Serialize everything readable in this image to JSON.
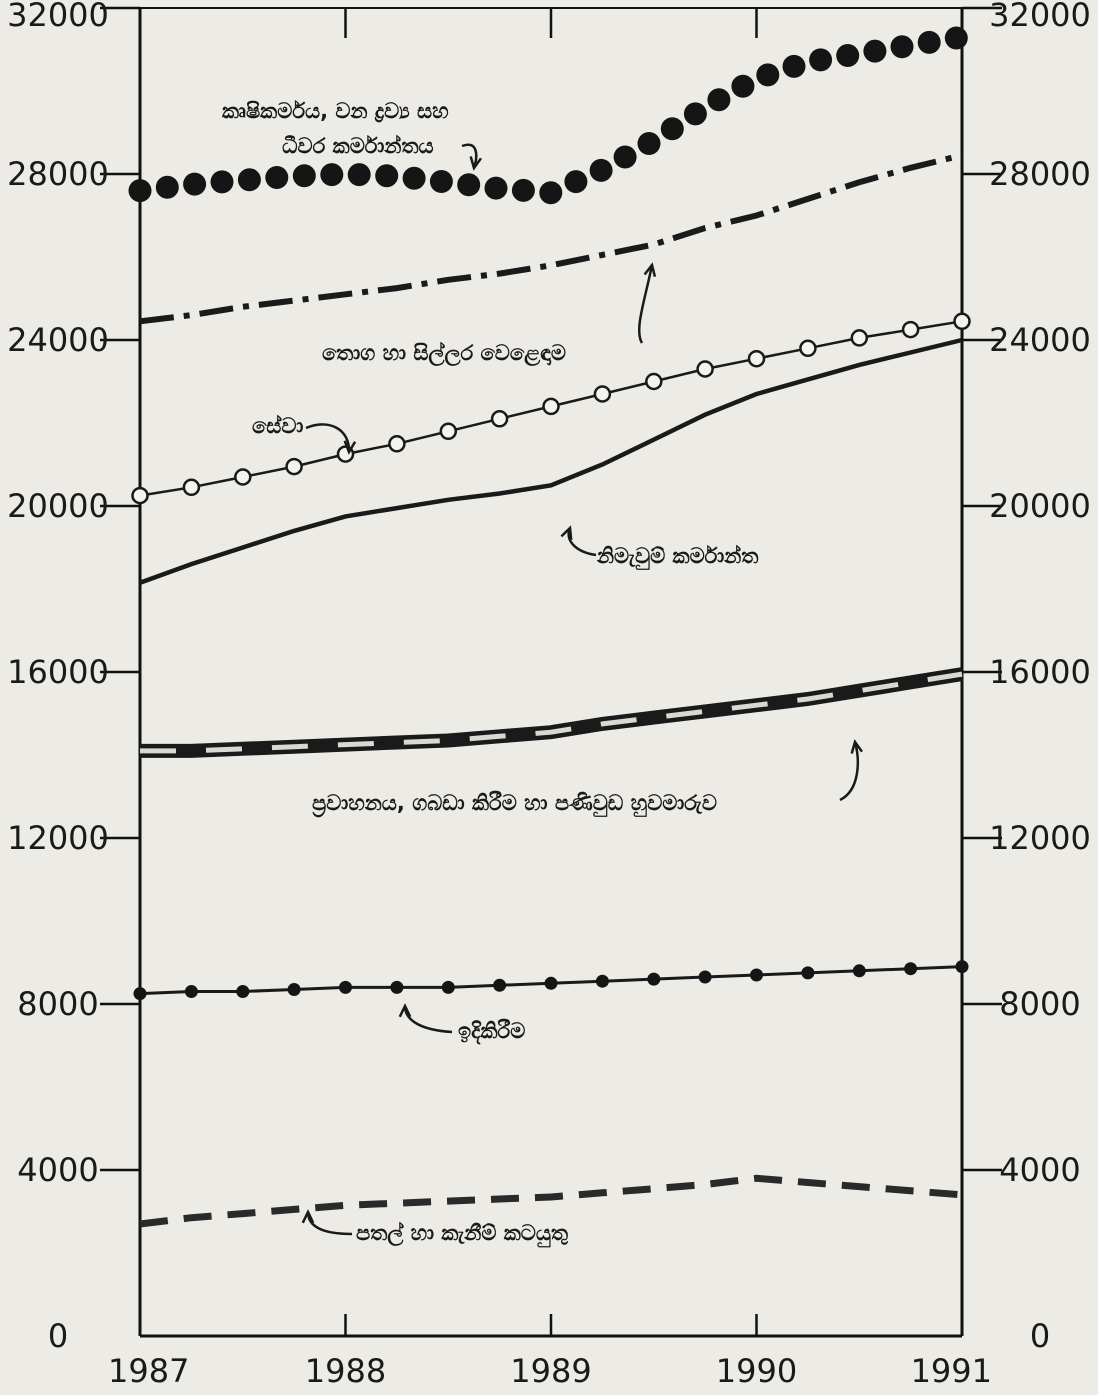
{
  "chart_data": {
    "type": "line",
    "x": [
      1987,
      1987.25,
      1987.5,
      1987.75,
      1988,
      1988.25,
      1988.5,
      1988.75,
      1989,
      1989.25,
      1989.5,
      1989.75,
      1990,
      1990.25,
      1990.5,
      1990.75,
      1991
    ],
    "x_ticks": [
      1987,
      1988,
      1989,
      1990,
      1991
    ],
    "x_tick_labels": [
      "1987",
      "1988",
      "1989",
      "1990",
      "1991"
    ],
    "y_ticks": [
      0,
      4000,
      8000,
      12000,
      16000,
      20000,
      24000,
      28000,
      32000
    ],
    "y_tick_labels": [
      "0",
      "4000",
      "8000",
      "12000",
      "16000",
      "20000",
      "24000",
      "28000",
      "32000"
    ],
    "xlim": [
      1987,
      1991
    ],
    "ylim": [
      0,
      32000
    ],
    "grid": false,
    "series": [
      {
        "name": "කෘෂිකර්මය, වන ද්‍රව්‍ය සහ ධීවර කර්මාන්තය",
        "name_line1": "කෘෂිකර්මය, වන ද්‍රව්‍ය සහ",
        "name_line2": "ධීවර කර්මාන්තය",
        "style": "big-dots",
        "values": [
          27600,
          27750,
          27850,
          27950,
          28000,
          27950,
          27800,
          27650,
          27550,
          28100,
          28800,
          29600,
          30300,
          30700,
          30900,
          31100,
          31300
        ]
      },
      {
        "name": "තොග හා සිල්ලර වෙළෙඳාම",
        "style": "dash-dot",
        "values": [
          24450,
          24600,
          24800,
          24950,
          25100,
          25250,
          25450,
          25600,
          25800,
          26050,
          26300,
          26700,
          27000,
          27400,
          27800,
          28150,
          28450
        ]
      },
      {
        "name": "සේවා",
        "style": "open-circles",
        "values": [
          20250,
          20450,
          20700,
          20950,
          21250,
          21500,
          21800,
          22100,
          22400,
          22700,
          23000,
          23300,
          23550,
          23800,
          24050,
          24250,
          24450
        ]
      },
      {
        "name": "නිමැවුම් කර්මාන්ත",
        "style": "solid",
        "values": [
          18150,
          18600,
          19000,
          19400,
          19750,
          19950,
          20150,
          20300,
          20500,
          21000,
          21600,
          22200,
          22700,
          23050,
          23400,
          23700,
          24000
        ]
      },
      {
        "name": "ප්‍රවාහනය, ගබඩා කිරීම හා පණිවුඩ හුවමාරුව",
        "style": "railroad",
        "values": [
          14100,
          14100,
          14150,
          14200,
          14250,
          14300,
          14350,
          14450,
          14550,
          14750,
          14900,
          15050,
          15200,
          15350,
          15550,
          15750,
          15950
        ]
      },
      {
        "name": "ඉදිකිරීම",
        "style": "small-dots",
        "values": [
          8250,
          8300,
          8300,
          8350,
          8400,
          8400,
          8400,
          8450,
          8500,
          8550,
          8600,
          8650,
          8700,
          8750,
          8800,
          8850,
          8900
        ]
      },
      {
        "name": "පතල් හා කැනීම් කටයුතු",
        "style": "dashed",
        "values": [
          2700,
          2850,
          2950,
          3050,
          3150,
          3200,
          3250,
          3300,
          3350,
          3450,
          3550,
          3650,
          3800,
          3700,
          3600,
          3500,
          3400
        ]
      }
    ]
  }
}
